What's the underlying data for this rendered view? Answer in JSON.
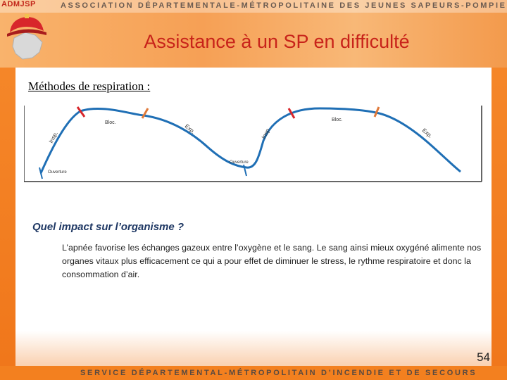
{
  "header": {
    "org_abbrev": "ADMJSP",
    "org_name": "ASSOCIATION DÉPARTEMENTALE-MÉTROPOLITAINE DES JEUNES SAPEURS-POMPIERS",
    "title": "Assistance à un SP en difficulté"
  },
  "slide": {
    "subtitle": "Méthodes de respiration :",
    "diagram": {
      "labels": {
        "insp_1": "Insp.",
        "bloc_1": "Bloc.",
        "exp_1": "Exp.",
        "ouverture_1": "Ouverture",
        "ouverture_2": "Ouverture",
        "insp_2": "Insp.",
        "bloc_2": "Bloc.",
        "exp_2": "Exp."
      },
      "colors": {
        "curve": "#1f6fb5",
        "marker_red": "#d8262b",
        "marker_orange": "#e07a3a"
      }
    },
    "question": "Quel impact sur l’organisme ?",
    "paragraph": "L’apnée favorise les échanges gazeux entre l’oxygène et le sang. Le sang ainsi mieux oxygéné alimente nos organes vitaux plus efficacement ce qui a pour effet de diminuer le stress, le rythme respiratoire et donc la consommation d’air.",
    "page_number": "54"
  },
  "footer": {
    "text": "SERVICE DÉPARTEMENTAL-MÉTROPOLITAIN D’INCENDIE ET DE SECOURS"
  }
}
